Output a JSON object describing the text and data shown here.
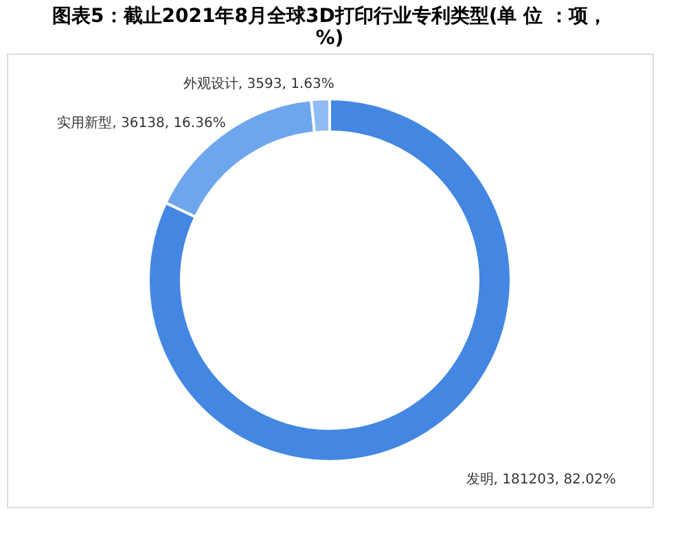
{
  "chart_data": {
    "type": "donut",
    "title": "图表5：截止2021年8月全球3D打印行业专利类型(单 位 ：项，%)",
    "categories": [
      "发明",
      "实用新型",
      "外观设计"
    ],
    "values": [
      181203,
      36138,
      3593
    ],
    "value_labels": [
      "181203, 82.02%",
      "36138, 16.36%",
      "3593, 1.63%"
    ],
    "colors": [
      "#4387e3",
      "#6da6ec",
      "#8fbdf3"
    ],
    "legend": false
  }
}
